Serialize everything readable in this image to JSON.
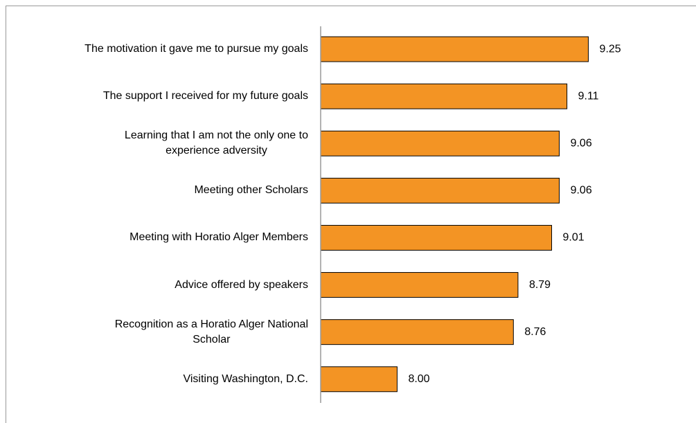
{
  "chart_data": {
    "type": "barh",
    "categories": [
      "The motivation it gave me to pursue my goals",
      "The support I received for my future goals",
      "Learning that I am not the only one to\nexperience adversity",
      "Meeting other Scholars",
      "Meeting with Horatio Alger Members",
      "Advice offered by speakers",
      "Recognition as a Horatio Alger National\nScholar",
      "Visiting Washington, D.C."
    ],
    "values": [
      9.25,
      9.11,
      9.06,
      9.06,
      9.01,
      8.79,
      8.76,
      8.0
    ],
    "value_labels": [
      "9.25",
      "9.11",
      "9.06",
      "9.06",
      "9.01",
      "8.79",
      "8.76",
      "8.00"
    ],
    "color": "#f39424",
    "xlim": [
      7.5,
      9.75
    ]
  }
}
